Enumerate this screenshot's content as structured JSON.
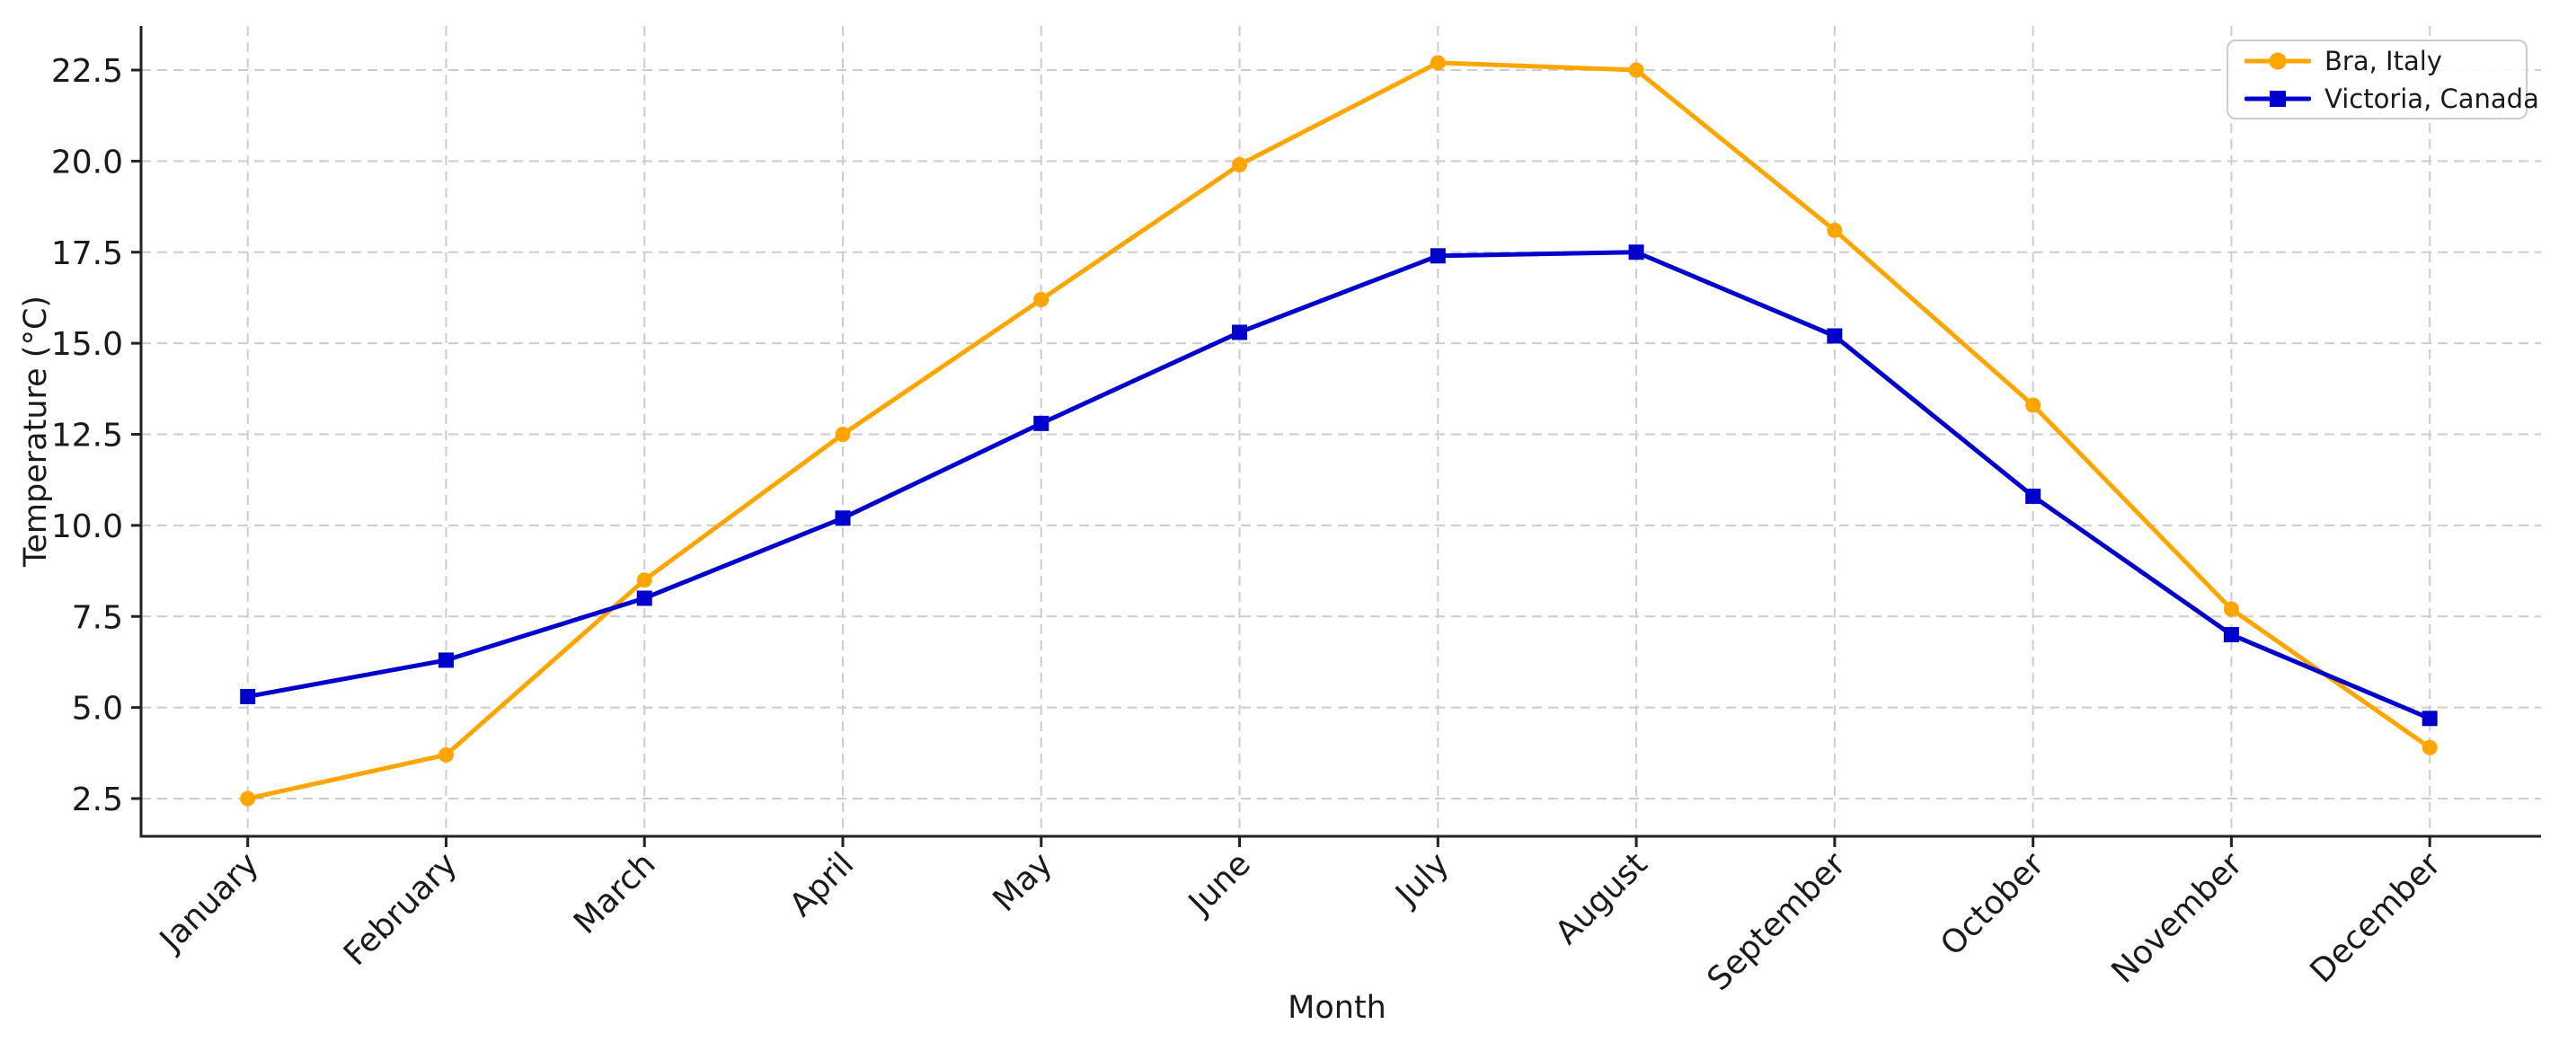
{
  "chart_data": {
    "type": "line",
    "title": "",
    "xlabel": "Month",
    "ylabel": "Temperature (°C)",
    "categories": [
      "January",
      "February",
      "March",
      "April",
      "May",
      "June",
      "July",
      "August",
      "September",
      "October",
      "November",
      "December"
    ],
    "series": [
      {
        "name": "Bra, Italy",
        "color": "#FFA500",
        "marker": "circle",
        "values": [
          2.5,
          3.7,
          8.5,
          12.5,
          16.2,
          19.9,
          22.7,
          22.5,
          18.1,
          13.3,
          7.7,
          3.9
        ]
      },
      {
        "name": "Victoria, Canada",
        "color": "#0000CD",
        "marker": "square",
        "values": [
          5.3,
          6.3,
          8.0,
          10.2,
          12.8,
          15.3,
          17.4,
          17.5,
          15.2,
          10.8,
          7.0,
          4.7
        ]
      }
    ],
    "yticks": [
      2.5,
      5.0,
      7.5,
      10.0,
      12.5,
      15.0,
      17.5,
      20.0,
      22.5
    ],
    "ytick_labels": [
      "2.5",
      "5.0",
      "7.5",
      "10.0",
      "12.5",
      "15.0",
      "17.5",
      "20.0",
      "22.5"
    ],
    "ylim": [
      1.5,
      23.7
    ],
    "grid": true,
    "grid_style": "dashed",
    "legend_position": "upper right",
    "colors": {
      "grid": "#cccccc",
      "axis": "#222222",
      "text": "#1a1a1a"
    }
  }
}
